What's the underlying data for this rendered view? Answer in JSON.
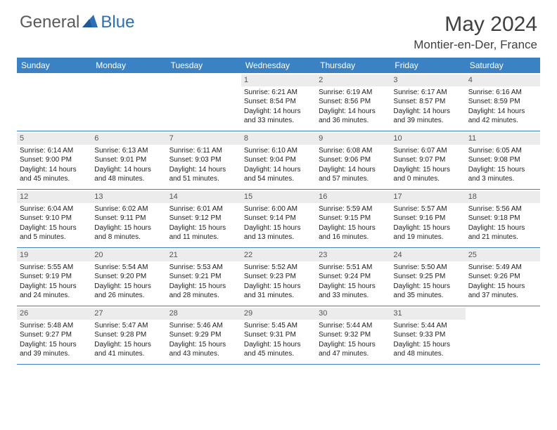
{
  "brand": {
    "part1": "General",
    "part2": "Blue"
  },
  "title": "May 2024",
  "location": "Montier-en-Der, France",
  "colors": {
    "header_bg": "#3b82c4",
    "header_text": "#ffffff",
    "daynum_bg": "#ececec",
    "border": "#3b82c4",
    "brand_gray": "#595959",
    "brand_blue": "#2d6fb5"
  },
  "day_headers": [
    "Sunday",
    "Monday",
    "Tuesday",
    "Wednesday",
    "Thursday",
    "Friday",
    "Saturday"
  ],
  "weeks": [
    [
      {
        "num": "",
        "lines": []
      },
      {
        "num": "",
        "lines": []
      },
      {
        "num": "",
        "lines": []
      },
      {
        "num": "1",
        "lines": [
          "Sunrise: 6:21 AM",
          "Sunset: 8:54 PM",
          "Daylight: 14 hours",
          "and 33 minutes."
        ]
      },
      {
        "num": "2",
        "lines": [
          "Sunrise: 6:19 AM",
          "Sunset: 8:56 PM",
          "Daylight: 14 hours",
          "and 36 minutes."
        ]
      },
      {
        "num": "3",
        "lines": [
          "Sunrise: 6:17 AM",
          "Sunset: 8:57 PM",
          "Daylight: 14 hours",
          "and 39 minutes."
        ]
      },
      {
        "num": "4",
        "lines": [
          "Sunrise: 6:16 AM",
          "Sunset: 8:59 PM",
          "Daylight: 14 hours",
          "and 42 minutes."
        ]
      }
    ],
    [
      {
        "num": "5",
        "lines": [
          "Sunrise: 6:14 AM",
          "Sunset: 9:00 PM",
          "Daylight: 14 hours",
          "and 45 minutes."
        ]
      },
      {
        "num": "6",
        "lines": [
          "Sunrise: 6:13 AM",
          "Sunset: 9:01 PM",
          "Daylight: 14 hours",
          "and 48 minutes."
        ]
      },
      {
        "num": "7",
        "lines": [
          "Sunrise: 6:11 AM",
          "Sunset: 9:03 PM",
          "Daylight: 14 hours",
          "and 51 minutes."
        ]
      },
      {
        "num": "8",
        "lines": [
          "Sunrise: 6:10 AM",
          "Sunset: 9:04 PM",
          "Daylight: 14 hours",
          "and 54 minutes."
        ]
      },
      {
        "num": "9",
        "lines": [
          "Sunrise: 6:08 AM",
          "Sunset: 9:06 PM",
          "Daylight: 14 hours",
          "and 57 minutes."
        ]
      },
      {
        "num": "10",
        "lines": [
          "Sunrise: 6:07 AM",
          "Sunset: 9:07 PM",
          "Daylight: 15 hours",
          "and 0 minutes."
        ]
      },
      {
        "num": "11",
        "lines": [
          "Sunrise: 6:05 AM",
          "Sunset: 9:08 PM",
          "Daylight: 15 hours",
          "and 3 minutes."
        ]
      }
    ],
    [
      {
        "num": "12",
        "lines": [
          "Sunrise: 6:04 AM",
          "Sunset: 9:10 PM",
          "Daylight: 15 hours",
          "and 5 minutes."
        ]
      },
      {
        "num": "13",
        "lines": [
          "Sunrise: 6:02 AM",
          "Sunset: 9:11 PM",
          "Daylight: 15 hours",
          "and 8 minutes."
        ]
      },
      {
        "num": "14",
        "lines": [
          "Sunrise: 6:01 AM",
          "Sunset: 9:12 PM",
          "Daylight: 15 hours",
          "and 11 minutes."
        ]
      },
      {
        "num": "15",
        "lines": [
          "Sunrise: 6:00 AM",
          "Sunset: 9:14 PM",
          "Daylight: 15 hours",
          "and 13 minutes."
        ]
      },
      {
        "num": "16",
        "lines": [
          "Sunrise: 5:59 AM",
          "Sunset: 9:15 PM",
          "Daylight: 15 hours",
          "and 16 minutes."
        ]
      },
      {
        "num": "17",
        "lines": [
          "Sunrise: 5:57 AM",
          "Sunset: 9:16 PM",
          "Daylight: 15 hours",
          "and 19 minutes."
        ]
      },
      {
        "num": "18",
        "lines": [
          "Sunrise: 5:56 AM",
          "Sunset: 9:18 PM",
          "Daylight: 15 hours",
          "and 21 minutes."
        ]
      }
    ],
    [
      {
        "num": "19",
        "lines": [
          "Sunrise: 5:55 AM",
          "Sunset: 9:19 PM",
          "Daylight: 15 hours",
          "and 24 minutes."
        ]
      },
      {
        "num": "20",
        "lines": [
          "Sunrise: 5:54 AM",
          "Sunset: 9:20 PM",
          "Daylight: 15 hours",
          "and 26 minutes."
        ]
      },
      {
        "num": "21",
        "lines": [
          "Sunrise: 5:53 AM",
          "Sunset: 9:21 PM",
          "Daylight: 15 hours",
          "and 28 minutes."
        ]
      },
      {
        "num": "22",
        "lines": [
          "Sunrise: 5:52 AM",
          "Sunset: 9:23 PM",
          "Daylight: 15 hours",
          "and 31 minutes."
        ]
      },
      {
        "num": "23",
        "lines": [
          "Sunrise: 5:51 AM",
          "Sunset: 9:24 PM",
          "Daylight: 15 hours",
          "and 33 minutes."
        ]
      },
      {
        "num": "24",
        "lines": [
          "Sunrise: 5:50 AM",
          "Sunset: 9:25 PM",
          "Daylight: 15 hours",
          "and 35 minutes."
        ]
      },
      {
        "num": "25",
        "lines": [
          "Sunrise: 5:49 AM",
          "Sunset: 9:26 PM",
          "Daylight: 15 hours",
          "and 37 minutes."
        ]
      }
    ],
    [
      {
        "num": "26",
        "lines": [
          "Sunrise: 5:48 AM",
          "Sunset: 9:27 PM",
          "Daylight: 15 hours",
          "and 39 minutes."
        ]
      },
      {
        "num": "27",
        "lines": [
          "Sunrise: 5:47 AM",
          "Sunset: 9:28 PM",
          "Daylight: 15 hours",
          "and 41 minutes."
        ]
      },
      {
        "num": "28",
        "lines": [
          "Sunrise: 5:46 AM",
          "Sunset: 9:29 PM",
          "Daylight: 15 hours",
          "and 43 minutes."
        ]
      },
      {
        "num": "29",
        "lines": [
          "Sunrise: 5:45 AM",
          "Sunset: 9:31 PM",
          "Daylight: 15 hours",
          "and 45 minutes."
        ]
      },
      {
        "num": "30",
        "lines": [
          "Sunrise: 5:44 AM",
          "Sunset: 9:32 PM",
          "Daylight: 15 hours",
          "and 47 minutes."
        ]
      },
      {
        "num": "31",
        "lines": [
          "Sunrise: 5:44 AM",
          "Sunset: 9:33 PM",
          "Daylight: 15 hours",
          "and 48 minutes."
        ]
      },
      {
        "num": "",
        "lines": []
      }
    ]
  ]
}
